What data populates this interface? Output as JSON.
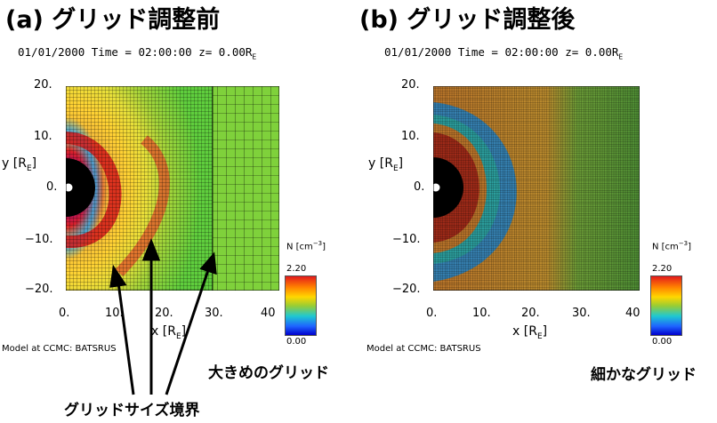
{
  "panel_a": {
    "title": "(a) グリッド調整前",
    "subtitle_date_time": "01/01/2000 Time = 02:00:00",
    "subtitle_z": "z= 0.00R",
    "subtitle_z_sub": "E",
    "x_ticks": [
      "0.",
      "10.",
      "20.",
      "30.",
      "40"
    ],
    "y_ticks": [
      "20.",
      "10.",
      "0.",
      "−10.",
      "−20."
    ],
    "xlabel": "x [R",
    "xlabel_sub": "E",
    "ylabel": "y [R",
    "ylabel_sub": "E",
    "colorbar_unit": "N [cm",
    "colorbar_unit_sup": "−3",
    "colorbar_max": "2.20",
    "colorbar_min": "0.00",
    "credit": "Model at CCMC: BATSRUS",
    "annotation_coarse": "大きめのグリッド",
    "annotation_boundary": "グリッドサイズ境界"
  },
  "panel_b": {
    "title": "(b) グリッド調整後",
    "subtitle_date_time": "01/01/2000 Time = 02:00:00",
    "subtitle_z": "z= 0.00R",
    "subtitle_z_sub": "E",
    "x_ticks": [
      "0.",
      "10.",
      "20.",
      "30.",
      "40"
    ],
    "y_ticks": [
      "20.",
      "10.",
      "0.",
      "−10.",
      "−20."
    ],
    "xlabel": "x [R",
    "xlabel_sub": "E",
    "ylabel": "y [R",
    "ylabel_sub": "E",
    "colorbar_unit": "N [cm",
    "colorbar_unit_sup": "−3",
    "colorbar_max": "2.20",
    "colorbar_min": "0.00",
    "credit": "Model at CCMC: BATSRUS",
    "annotation_fine": "細かなグリッド"
  },
  "colors": {
    "background_outer": "#22c55e",
    "field_mid": "#e6a11a",
    "field_hot": "#d11a1a",
    "field_cold": "#1e8fd8",
    "body": "#000000",
    "grid_line": "#000000"
  }
}
